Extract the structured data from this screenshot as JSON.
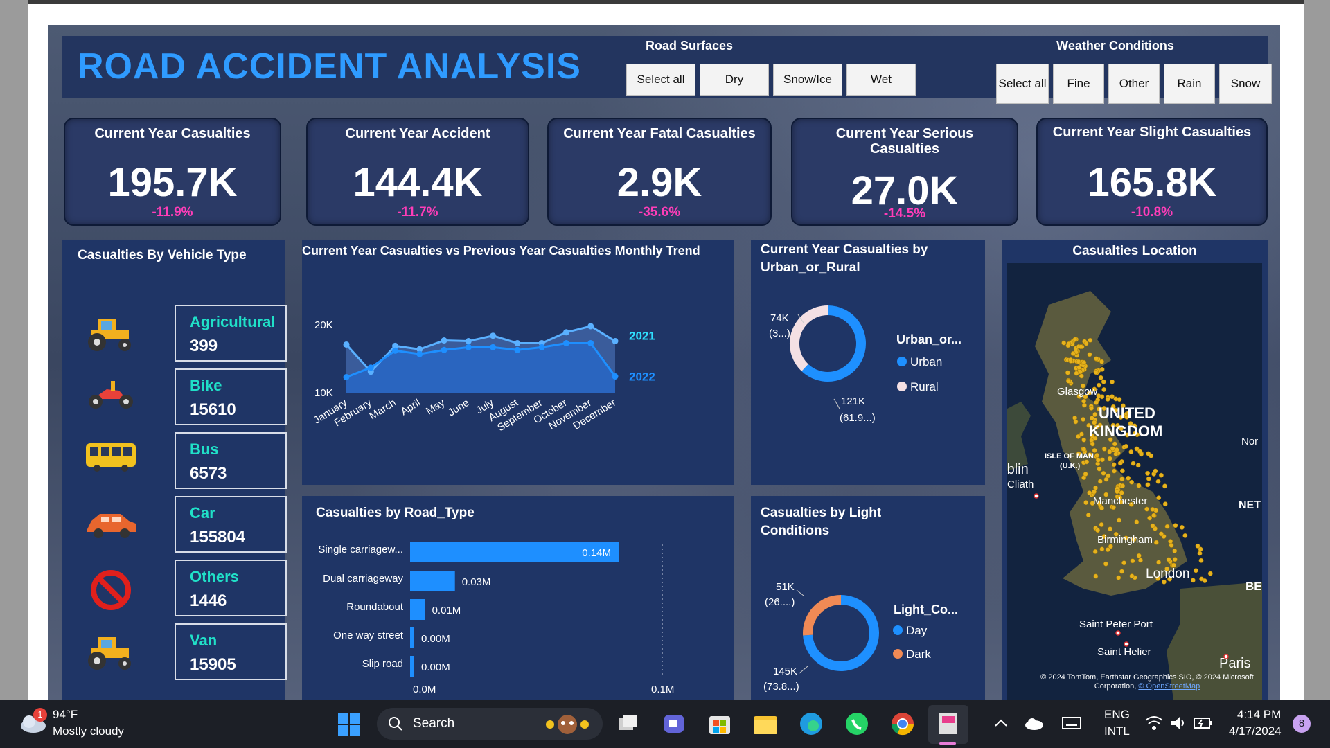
{
  "header": {
    "title": "ROAD ACCIDENT ANALYSIS"
  },
  "road_surfaces": {
    "title": "Road Surfaces",
    "options": [
      "Select all",
      "Dry",
      "Snow/Ice",
      "Wet"
    ]
  },
  "weather": {
    "title": "Weather Conditions",
    "options": [
      "Select all",
      "Fine",
      "Other",
      "Rain",
      "Snow"
    ]
  },
  "kpis": [
    {
      "title": "Current Year Casualties",
      "value": "195.7K",
      "delta": "-11.9%"
    },
    {
      "title": "Current Year Accident",
      "value": "144.4K",
      "delta": "-11.7%"
    },
    {
      "title": "Current Year Fatal Casualties",
      "value": "2.9K",
      "delta": "-35.6%"
    },
    {
      "title": "Current Year Serious Casualties",
      "value": "27.0K",
      "delta": "-14.5%"
    },
    {
      "title": "Current Year Slight Casualties",
      "value": "165.8K",
      "delta": "-10.8%"
    }
  ],
  "vehicles": {
    "title": "Casualties By Vehicle Type",
    "items": [
      {
        "name": "Agricultural",
        "value": "399",
        "icon": "tractor-icon"
      },
      {
        "name": "Bike",
        "value": "15610",
        "icon": "bike-icon"
      },
      {
        "name": "Bus",
        "value": "6573",
        "icon": "bus-icon"
      },
      {
        "name": "Car",
        "value": "155804",
        "icon": "car-icon"
      },
      {
        "name": "Others",
        "value": "1446",
        "icon": "no-entry-icon"
      },
      {
        "name": "Van",
        "value": "15905",
        "icon": "van-icon"
      }
    ]
  },
  "trend": {
    "title": "Current Year Casualties vs Previous Year Casualties Monthly Trend",
    "y_ticks": [
      "20K",
      "10K"
    ]
  },
  "urban": {
    "title": "Current Year Casualties by Urban_or_Rural",
    "legend_title": "Urban_or...",
    "legend": [
      "Urban",
      "Rural"
    ],
    "label_small": [
      "74K",
      "(3...)"
    ],
    "label_big": [
      "121K",
      "(61.9...)"
    ]
  },
  "road_type": {
    "title": "Casualties by Road_Type",
    "x_ticks": [
      "0.0M",
      "0.1M"
    ]
  },
  "light": {
    "title": "Casualties by Light Conditions",
    "legend_title": "Light_Co...",
    "legend": [
      "Day",
      "Dark"
    ],
    "label_small": [
      "51K",
      "(26....)"
    ],
    "label_big": [
      "145K",
      "(73.8...)"
    ]
  },
  "map": {
    "title": "Casualties Location",
    "labels": {
      "glasgow": "Glasgow",
      "uk1": "UNITED",
      "uk2": "KINGDOM",
      "isle1": "ISLE OF MAN",
      "isle2": "(U.K.)",
      "dublin": "Dublin",
      "dublin2": "Cliath",
      "manchester": "Manchester",
      "birmingham": "Birmingham",
      "london": "London",
      "saint_peter": "Saint Peter Port",
      "saint_helier": "Saint Helier",
      "paris": "Paris",
      "nor": "Nor",
      "net": "NET",
      "be": "BE"
    },
    "attribution": "© 2024 TomTom, Earthstar Geographics SIO, © 2024 Microsoft Corporation,",
    "attribution_link": "© OpenStreetMap"
  },
  "taskbar": {
    "weather_temp": "94°F",
    "weather_desc": "Mostly cloudy",
    "weather_badge": "1",
    "search": "Search",
    "lang1": "ENG",
    "lang2": "INTL",
    "time": "4:14 PM",
    "date": "4/17/2024",
    "notif": "8"
  },
  "chart_data": [
    {
      "type": "line",
      "title": "Current Year Casualties vs Previous Year Casualties Monthly Trend",
      "categories": [
        "January",
        "February",
        "March",
        "April",
        "May",
        "June",
        "July",
        "August",
        "September",
        "October",
        "November",
        "December"
      ],
      "series": [
        {
          "name": "2021",
          "values": [
            17200,
            13200,
            17000,
            16500,
            17800,
            17700,
            18500,
            17400,
            17400,
            19000,
            19900,
            17700
          ]
        },
        {
          "name": "2022",
          "values": [
            12400,
            13800,
            16300,
            15800,
            16400,
            16800,
            16800,
            16400,
            16800,
            17400,
            17400,
            12500
          ]
        }
      ],
      "ylim": [
        10000,
        21000
      ],
      "y_ticks": [
        "20K",
        "10K"
      ]
    },
    {
      "type": "pie",
      "title": "Current Year Casualties by Urban_or_Rural",
      "categories": [
        "Urban",
        "Rural"
      ],
      "values": [
        121000,
        74000
      ],
      "colors": [
        "#1e90ff",
        "#f4e0e4"
      ]
    },
    {
      "type": "bar",
      "title": "Casualties by Road_Type",
      "categories": [
        "Single carriagew...",
        "Dual carriageway",
        "Roundabout",
        "One way street",
        "Slip road"
      ],
      "values": [
        0.14,
        0.03,
        0.01,
        0.0,
        0.0
      ],
      "value_labels": [
        "0.14M",
        "0.03M",
        "0.01M",
        "0.00M",
        "0.00M"
      ],
      "xlim": [
        0,
        0.14
      ],
      "x_ticks": [
        "0.0M",
        "0.1M"
      ]
    },
    {
      "type": "pie",
      "title": "Casualties by Light Conditions",
      "categories": [
        "Day",
        "Dark"
      ],
      "values": [
        145000,
        51000
      ],
      "colors": [
        "#1e90ff",
        "#f08a55"
      ]
    }
  ]
}
